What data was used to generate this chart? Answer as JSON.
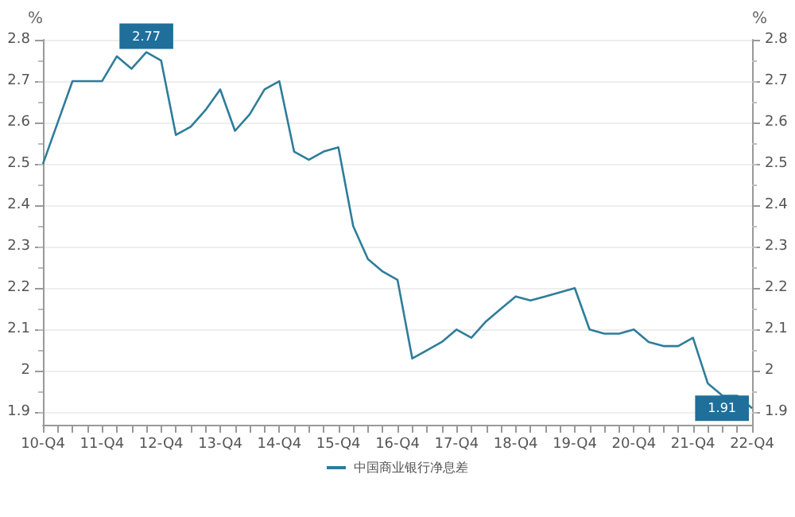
{
  "chart_data": {
    "type": "line",
    "ylabel": "%",
    "y2label": "%",
    "categories": [
      "10-Q4",
      null,
      null,
      null,
      "11-Q4",
      null,
      null,
      null,
      "12-Q4",
      null,
      null,
      null,
      "13-Q4",
      null,
      null,
      null,
      "14-Q4",
      null,
      null,
      null,
      "15-Q4",
      null,
      null,
      null,
      "16-Q4",
      null,
      null,
      null,
      "17-Q4",
      null,
      null,
      null,
      "18-Q4",
      null,
      null,
      null,
      "19-Q4",
      null,
      null,
      null,
      "20-Q4",
      null,
      null,
      null,
      "21-Q4",
      null,
      null,
      null,
      "22-Q4"
    ],
    "series": [
      {
        "name": "中国商业银行净息差",
        "color": "#2e7d9a",
        "values": [
          2.5,
          2.6,
          2.7,
          2.7,
          2.7,
          2.76,
          2.73,
          2.77,
          2.75,
          2.57,
          2.59,
          2.63,
          2.68,
          2.58,
          2.62,
          2.68,
          2.7,
          2.53,
          2.51,
          2.53,
          2.54,
          2.35,
          2.27,
          2.24,
          2.22,
          2.03,
          2.05,
          2.07,
          2.1,
          2.08,
          2.12,
          2.15,
          2.18,
          2.17,
          2.18,
          2.19,
          2.2,
          2.1,
          2.09,
          2.09,
          2.1,
          2.07,
          2.06,
          2.06,
          2.08,
          1.97,
          1.94,
          1.94,
          1.91
        ],
        "value_labels": [
          null,
          null,
          null,
          null,
          null,
          null,
          null,
          "2.77",
          null,
          null,
          null,
          null,
          null,
          null,
          null,
          null,
          null,
          null,
          null,
          null,
          null,
          null,
          null,
          null,
          null,
          null,
          null,
          null,
          null,
          null,
          null,
          null,
          null,
          null,
          null,
          null,
          null,
          null,
          null,
          null,
          null,
          null,
          null,
          null,
          null,
          null,
          null,
          null,
          "1.91"
        ]
      }
    ],
    "ylim": [
      1.87,
      2.8
    ],
    "yticks": [
      1.9,
      2,
      2.1,
      2.2,
      2.3,
      2.4,
      2.5,
      2.6,
      2.7,
      2.8
    ],
    "y2lim": [
      1.87,
      2.8
    ],
    "y2ticks": [
      1.9,
      2,
      2.1,
      2.2,
      2.3,
      2.4,
      2.5,
      2.6,
      2.7,
      2.8
    ],
    "grid": "y",
    "legend": "bottom",
    "marker": "none",
    "line_style": "solid"
  }
}
